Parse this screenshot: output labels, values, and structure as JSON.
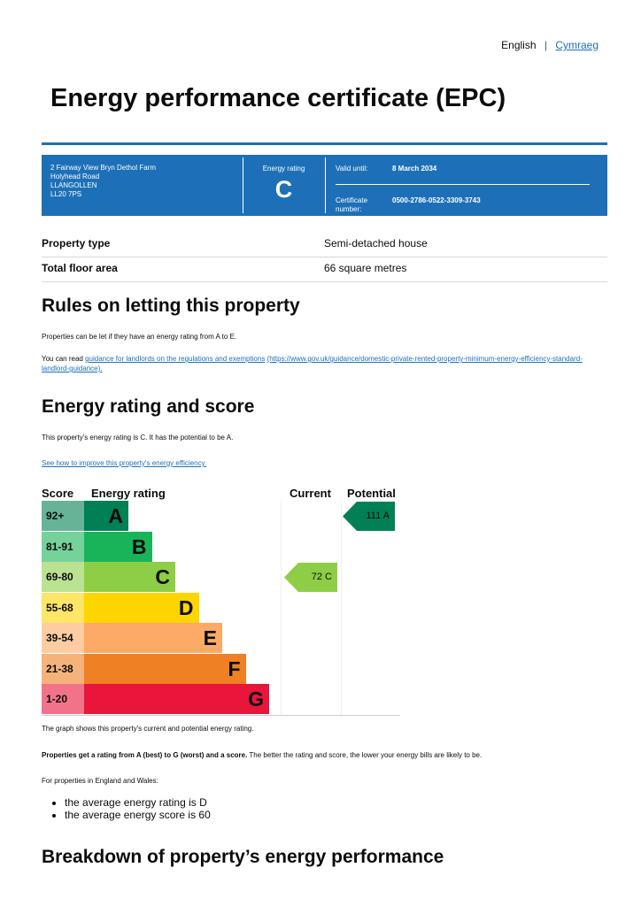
{
  "header": {
    "languages": [
      "English",
      "Cymraeg"
    ]
  },
  "title": "Energy performance certificate (EPC)",
  "summary": {
    "address": [
      "2 Fairway View Bryn Dethol Farm",
      "Holyhead Road",
      "LLANGOLLEN",
      "LL20 7PS"
    ],
    "rating_label": "Energy rating",
    "rating": "C",
    "valid_label": "Valid until:",
    "valid_until": "8 March 2034",
    "certificate_label": "Certificate number:",
    "certificate_number": "0500-2786-0522-3309-3743"
  },
  "property": {
    "rows": [
      [
        "Property type",
        "Semi-detached house"
      ],
      [
        "Total floor area",
        "66 square metres"
      ]
    ]
  },
  "letting": {
    "heading": "Rules on letting this property",
    "text": "Properties can be let if they have an energy rating from A to E.",
    "guidance_intro": "You can read ",
    "guidance_link": "guidance for landlords on the regulations and exemptions",
    "guidance_url": "(https://www.gov.uk/guidance/domestic-private-rented-property-minimum-energy-efficiency-standard-landlord-guidance)."
  },
  "rating_section": {
    "heading": "Energy rating and score",
    "text": "This property's energy rating is C. It has the potential to be A.",
    "improve_link": "See how to improve this property's energy efficiency.",
    "chart": {
      "headers": [
        "Score",
        "Energy rating",
        "Current",
        "Potential"
      ],
      "bands": [
        {
          "score": "92+",
          "letter": "A",
          "color": "#008054",
          "light": "#66b398"
        },
        {
          "score": "81-91",
          "letter": "B",
          "color": "#19b459",
          "light": "#75d29b"
        },
        {
          "score": "69-80",
          "letter": "C",
          "color": "#8dce46",
          "light": "#bbe290"
        },
        {
          "score": "55-68",
          "letter": "D",
          "color": "#ffd500",
          "light": "#ffe666"
        },
        {
          "score": "39-54",
          "letter": "E",
          "color": "#fcaa65",
          "light": "#fdcca3"
        },
        {
          "score": "21-38",
          "letter": "F",
          "color": "#ef8023",
          "light": "#f5b37b"
        },
        {
          "score": "1-20",
          "letter": "G",
          "color": "#e9153b",
          "light": "#f27389"
        }
      ],
      "current": {
        "label": "72 C",
        "band": 2
      },
      "potential": {
        "label": "111 A",
        "band": 0
      }
    },
    "graph_note": "The graph shows this property's current and potential energy rating.",
    "scale_bold": "Properties get a rating from A (best) to G (worst) and a score.",
    "scale_text": " The better the rating and score, the lower your energy bills are likely to be.",
    "average_intro": "For properties in England and Wales:",
    "averages": [
      "the average energy rating is D",
      "the average energy score is 60"
    ]
  },
  "breakdown": {
    "heading": "Breakdown of property’s energy performance"
  }
}
